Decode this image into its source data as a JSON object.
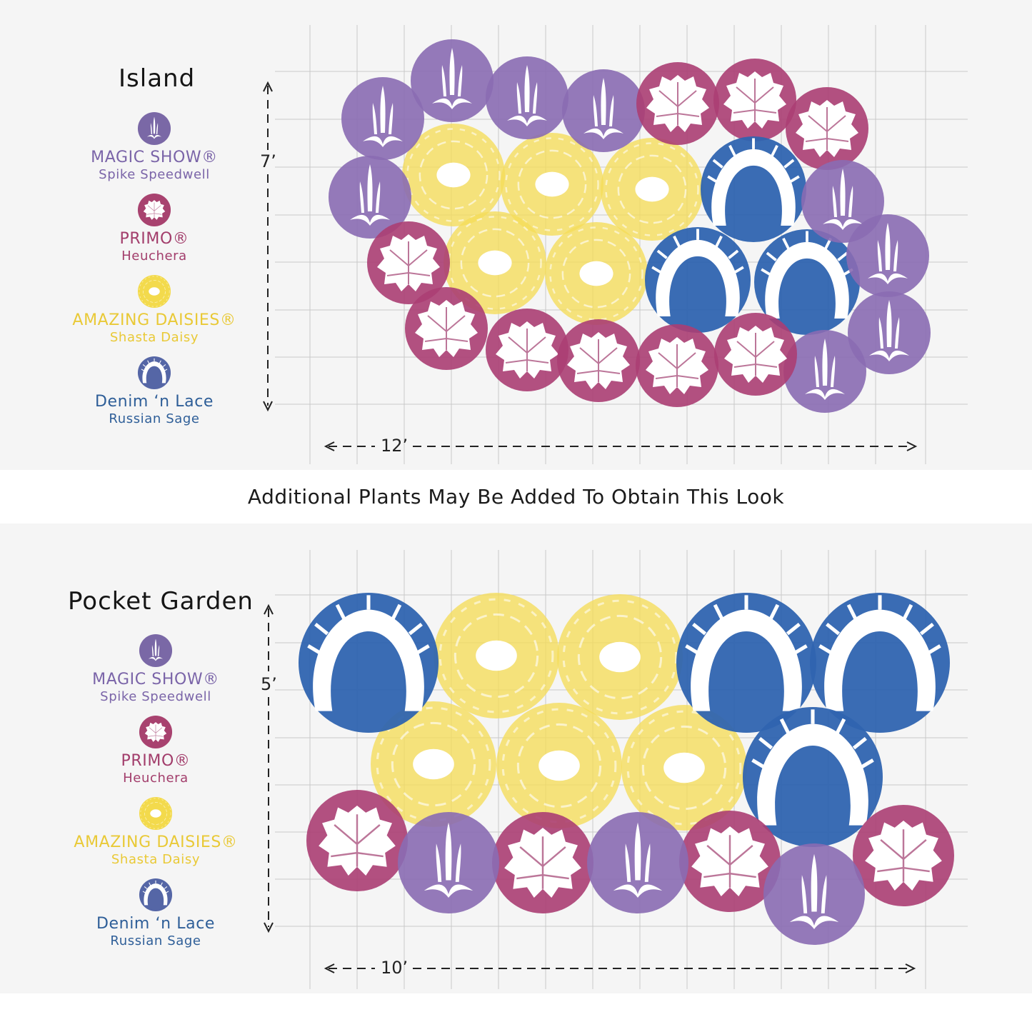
{
  "colors": {
    "speedwell": "#8a6bb3",
    "heuchera": "#ab3e73",
    "daisy": "#f5dc58",
    "sage": "#2f64b0",
    "speedwell_text": "#7a64a8",
    "heuchera_text": "#a23d6b",
    "daisy_text": "#e9c936",
    "sage_text": "#2e5e98"
  },
  "icons": {
    "speedwell": "spike-plant-icon",
    "heuchera": "leaf-icon",
    "daisy": "daisy-icon",
    "sage": "russian-sage-icon"
  },
  "plants": [
    {
      "key": "speedwell",
      "name": "MAGIC SHOW®",
      "common": "Spike Speedwell"
    },
    {
      "key": "heuchera",
      "name": "PRIMO®",
      "common": "Heuchera"
    },
    {
      "key": "daisy",
      "name": "AMAZING DAISIES®",
      "common": "Shasta Daisy"
    },
    {
      "key": "sage",
      "name": "Denim ‘n Lace",
      "common": "Russian Sage"
    }
  ],
  "divider_text": "Additional Plants May Be Added To Obtain This Look",
  "island": {
    "title": "Island",
    "height_label": "7’",
    "width_label": "12’"
  },
  "pocket": {
    "title": "Pocket Garden",
    "height_label": "5’",
    "width_label": "10’"
  }
}
